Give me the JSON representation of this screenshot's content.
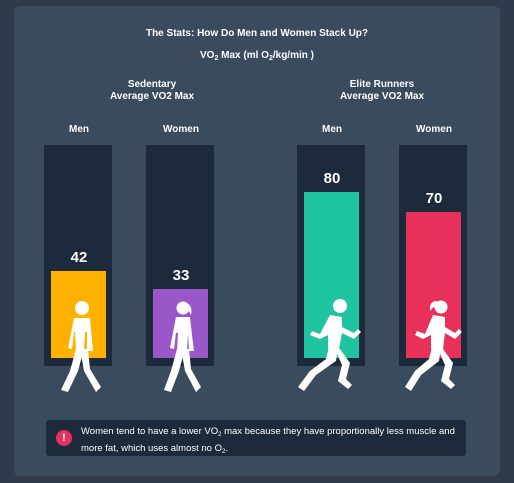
{
  "chart_data": {
    "type": "bar",
    "title": "The Stats: How Do Men and Women Stack Up?",
    "unit_label": {
      "pre": "VO",
      "sub1": "2",
      "mid": " Max (ml O",
      "sub2": "2",
      "post": "/kg/min )"
    },
    "groups": [
      {
        "label_line1": "Sedentary",
        "label_line2": "Average VO2 Max",
        "categories": [
          "Men",
          "Women"
        ],
        "values": [
          42,
          33
        ],
        "colors": [
          "#ffb100",
          "#9a57c9"
        ]
      },
      {
        "label_line1": "Elite Runners",
        "label_line2": "Average VO2 Max",
        "categories": [
          "Men",
          "Women"
        ],
        "values": [
          80,
          70
        ],
        "colors": [
          "#1ec3a0",
          "#e8315a"
        ]
      }
    ],
    "ylim": [
      0,
      100
    ],
    "grid": false
  },
  "note": {
    "icon": "exclamation-icon",
    "text_a": "Women tend to have a lower VO",
    "sub_a": "2",
    "text_b": " max because they have proportionally less muscle and more fat, which uses almost no O",
    "sub_b": "2",
    "text_c": "."
  },
  "colors": {
    "background": "#2f3b4a",
    "card": "#3a4b5d",
    "track": "#1d2a3b",
    "accent_red": "#e8315a"
  }
}
